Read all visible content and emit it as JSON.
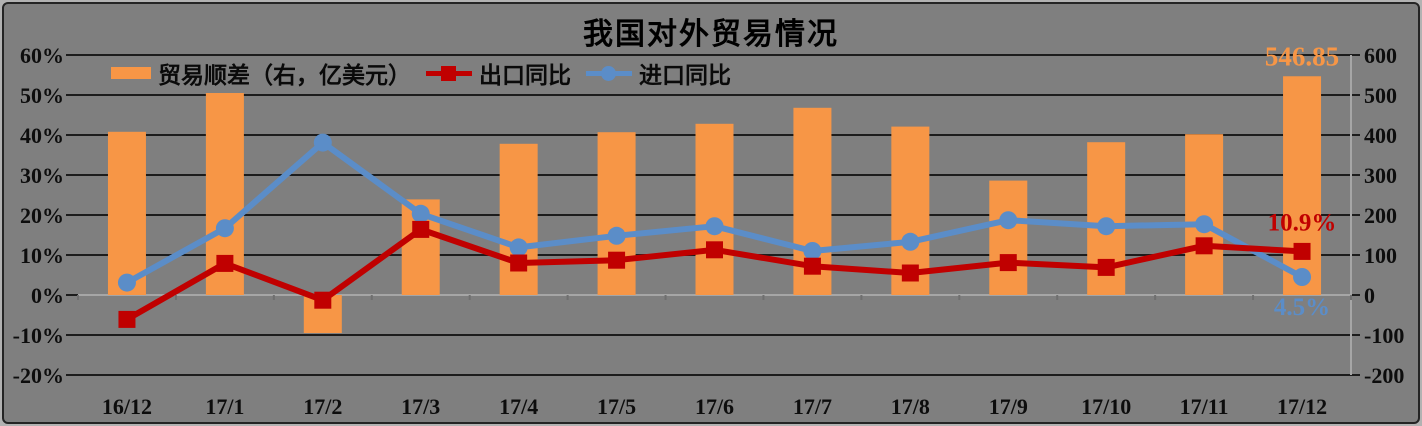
{
  "chart_data": {
    "type": "combo_bar_line",
    "title": "我国对外贸易情况",
    "categories": [
      "16/12",
      "17/1",
      "17/2",
      "17/3",
      "17/4",
      "17/5",
      "17/6",
      "17/7",
      "17/8",
      "17/9",
      "17/10",
      "17/11",
      "17/12"
    ],
    "series": [
      {
        "name": "贸易顺差（右，亿美元）",
        "type": "bar",
        "axis": "right",
        "marker": "rect",
        "color": "#F79646",
        "values": [
          408,
          505,
          -95,
          239,
          378,
          407,
          428,
          468,
          421,
          286,
          382,
          402,
          546.85
        ]
      },
      {
        "name": "出口同比",
        "type": "line",
        "axis": "left",
        "marker": "square",
        "color": "#C00000",
        "values": [
          -6.1,
          7.9,
          -1.3,
          16.4,
          8.0,
          8.7,
          11.3,
          7.2,
          5.5,
          8.1,
          6.9,
          12.3,
          10.9
        ]
      },
      {
        "name": "进口同比",
        "type": "line",
        "axis": "left",
        "marker": "circle",
        "color": "#5B8DC8",
        "values": [
          3.1,
          16.7,
          38.1,
          20.3,
          11.9,
          14.8,
          17.2,
          11.0,
          13.3,
          18.7,
          17.2,
          17.7,
          4.5
        ]
      }
    ],
    "left_axis": {
      "ticks": [
        "60%",
        "50%",
        "40%",
        "30%",
        "20%",
        "10%",
        "0%",
        "-10%",
        "-20%"
      ],
      "min": -20,
      "max": 60,
      "step": 10
    },
    "right_axis": {
      "ticks": [
        "600",
        "500",
        "400",
        "300",
        "200",
        "100",
        "0",
        "-100",
        "-200"
      ],
      "min": -200,
      "max": 600,
      "step": 100
    },
    "annotations": [
      {
        "text": "546.85",
        "color": "#F79646",
        "series": 0,
        "index": 12
      },
      {
        "text": "10.9%",
        "color": "#C00000",
        "series": 1,
        "index": 12
      },
      {
        "text": "4.5%",
        "color": "#5B8DC8",
        "series": 2,
        "index": 12
      }
    ],
    "grid": true,
    "legend_position": "top-left-inside",
    "colors": {
      "plot_background": "#7F7F7F",
      "outer_ring": "#B2B2B2",
      "frame_border": "#242424",
      "gridline": "#1C1C1C",
      "zero_line": "#A6A6A6",
      "category_tick": "#6F6F6F",
      "text": "#0D0D0D"
    }
  }
}
